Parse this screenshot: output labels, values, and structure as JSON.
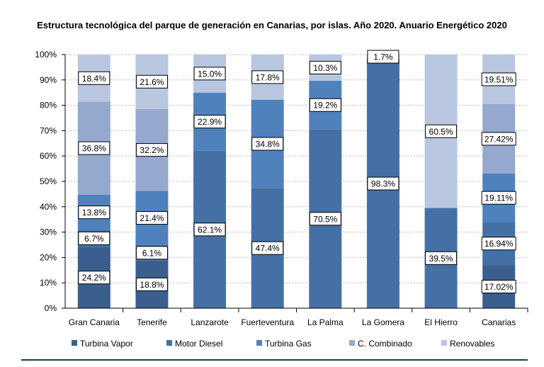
{
  "chart_data": {
    "type": "bar",
    "stacked": true,
    "title": "Estructura tecnológica del parque de generación en Canarias, por islas. Año 2020. Anuario Energético 2020",
    "xlabel": "",
    "ylabel": "",
    "ylim": [
      0,
      100
    ],
    "yticks": [
      "0%",
      "10%",
      "20%",
      "30%",
      "40%",
      "50%",
      "60%",
      "70%",
      "80%",
      "90%",
      "100%"
    ],
    "grid": true,
    "legend": "bottom",
    "categories": [
      "Gran Canaria",
      "Tenerife",
      "Lanzarote",
      "Fuerteventura",
      "La Palma",
      "La Gomera",
      "El Hierro",
      "Canarias"
    ],
    "series": [
      {
        "name": "Turbina Vapor",
        "color": "#3a5f8f",
        "values": [
          24.2,
          18.8,
          0,
          0,
          0,
          0,
          0,
          17.02
        ],
        "labels": [
          "24.2%",
          "18.8%",
          "",
          "",
          "",
          "",
          "",
          "17.02%"
        ]
      },
      {
        "name": "Motor Diesel",
        "color": "#4470a5",
        "values": [
          6.7,
          6.1,
          62.1,
          47.4,
          70.5,
          98.3,
          39.5,
          16.94
        ],
        "labels": [
          "6.7%",
          "6.1%",
          "62.1%",
          "47.4%",
          "70.5%",
          "98.3%",
          "39.5%",
          "16.94%"
        ]
      },
      {
        "name": "Turbina Gas",
        "color": "#4f81bd",
        "values": [
          13.8,
          21.4,
          22.9,
          34.8,
          19.2,
          0,
          0,
          19.11
        ],
        "labels": [
          "13.8%",
          "21.4%",
          "22.9%",
          "34.8%",
          "19.2%",
          "",
          "",
          "19.11%"
        ]
      },
      {
        "name": "C. Combinado",
        "color": "#95a9cf",
        "values": [
          36.8,
          32.2,
          0,
          0,
          0,
          0,
          0,
          27.42
        ],
        "labels": [
          "36.8%",
          "32.2%",
          "",
          "",
          "",
          "",
          "",
          "27.42%"
        ]
      },
      {
        "name": "Renovables",
        "color": "#b9c6e0",
        "values": [
          18.4,
          21.6,
          15.0,
          17.8,
          10.3,
          1.7,
          60.5,
          19.51
        ],
        "labels": [
          "18.4%",
          "21.6%",
          "15.0%",
          "17.8%",
          "10.3%",
          "1.7%",
          "60.5%",
          "19.51%"
        ]
      }
    ]
  }
}
